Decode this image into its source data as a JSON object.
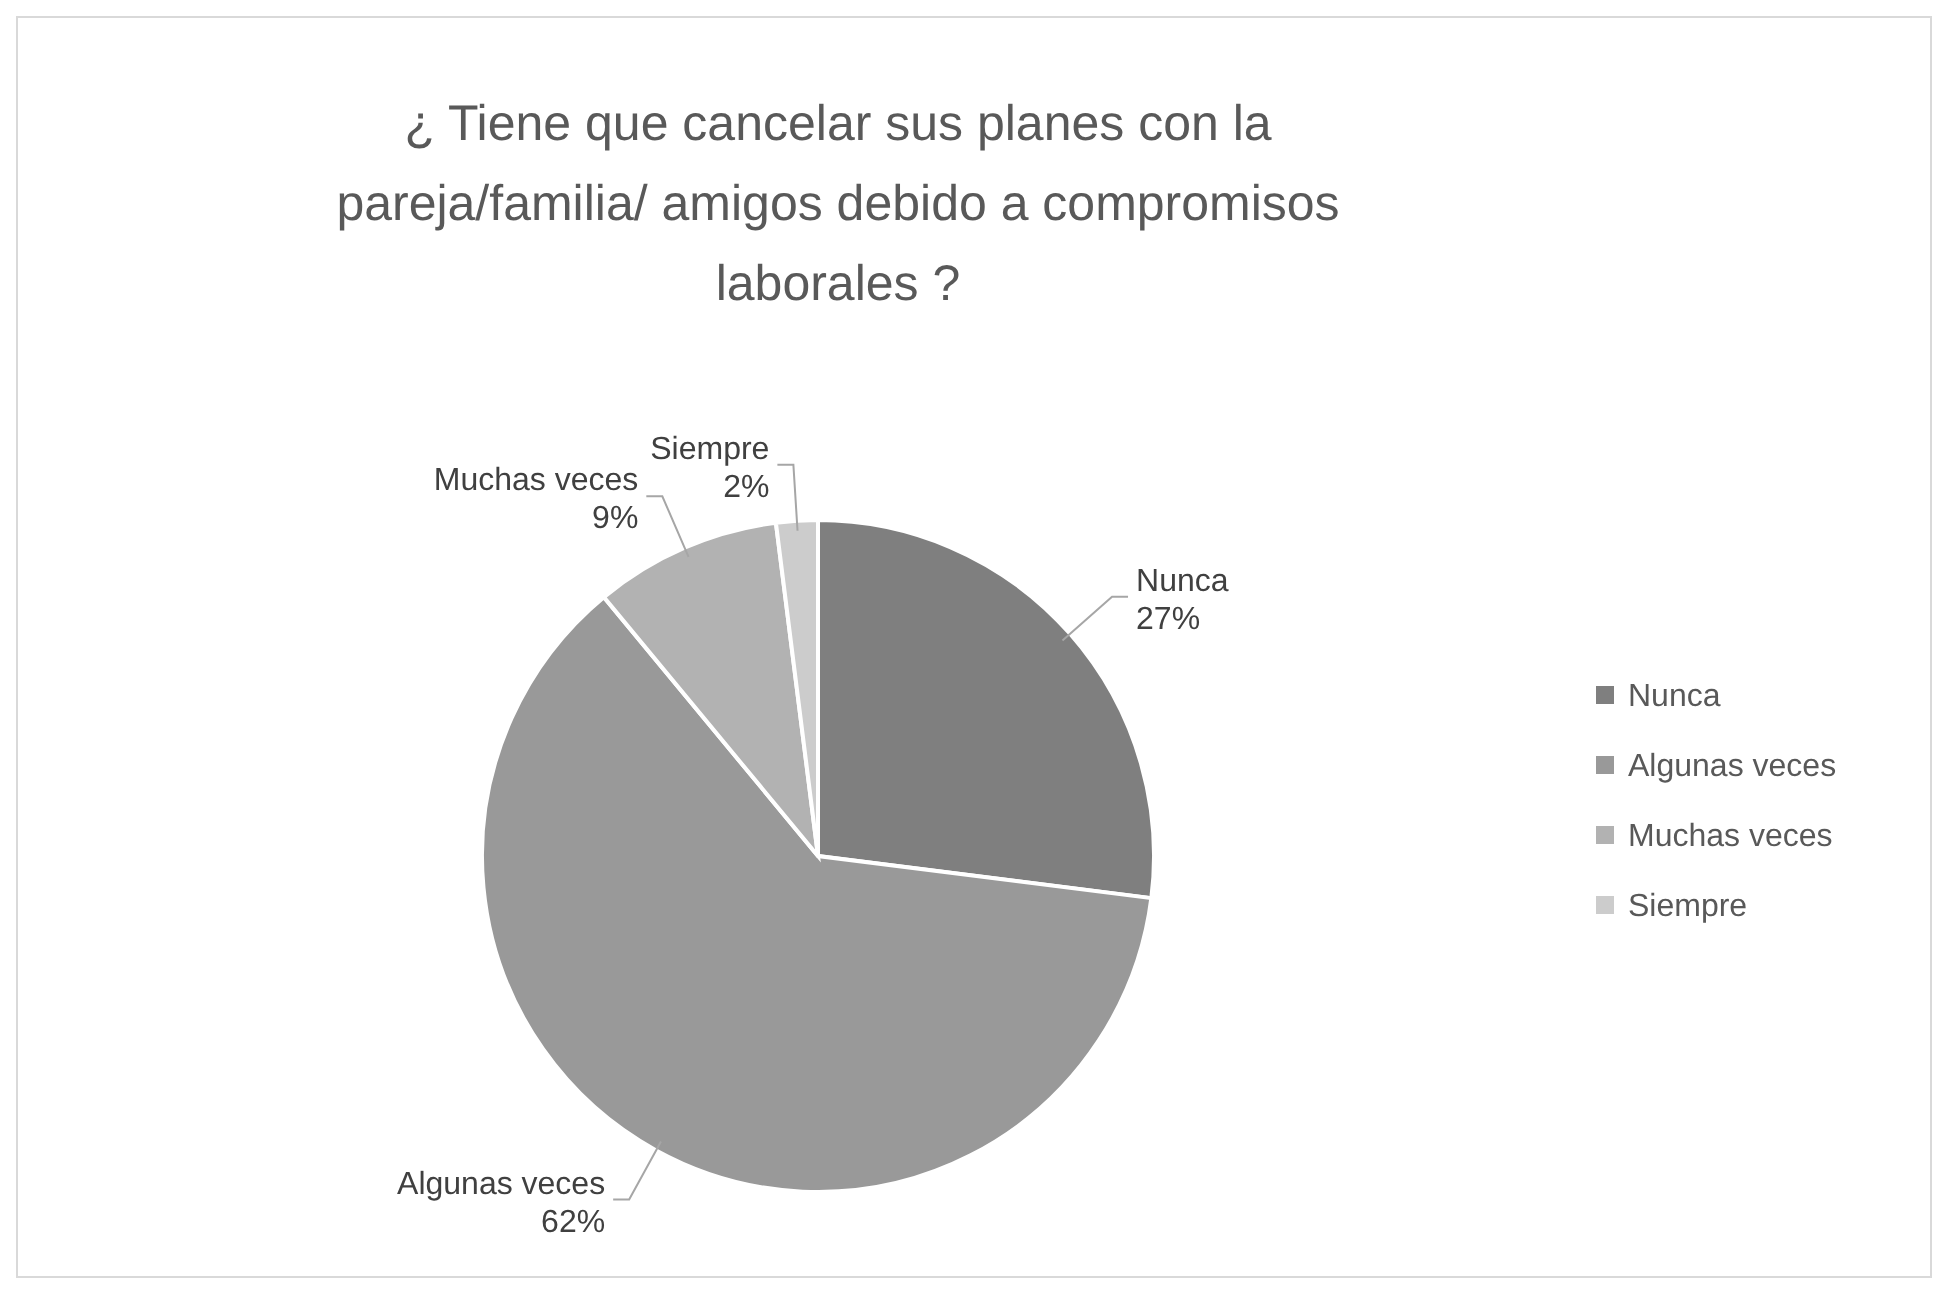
{
  "chart_data": {
    "type": "pie",
    "title": "¿ Tiene que cancelar sus planes con la pareja/familia/ amigos debido a compromisos laborales ?",
    "categories": [
      "Nunca",
      "Algunas veces",
      "Muchas veces",
      "Siempre"
    ],
    "values": [
      27,
      62,
      9,
      2
    ],
    "colors": [
      "#7f7f7f",
      "#999999",
      "#b2b2b2",
      "#cccccc"
    ],
    "value_labels": [
      "27%",
      "62%",
      "9%",
      "2%"
    ],
    "legend": "right"
  }
}
